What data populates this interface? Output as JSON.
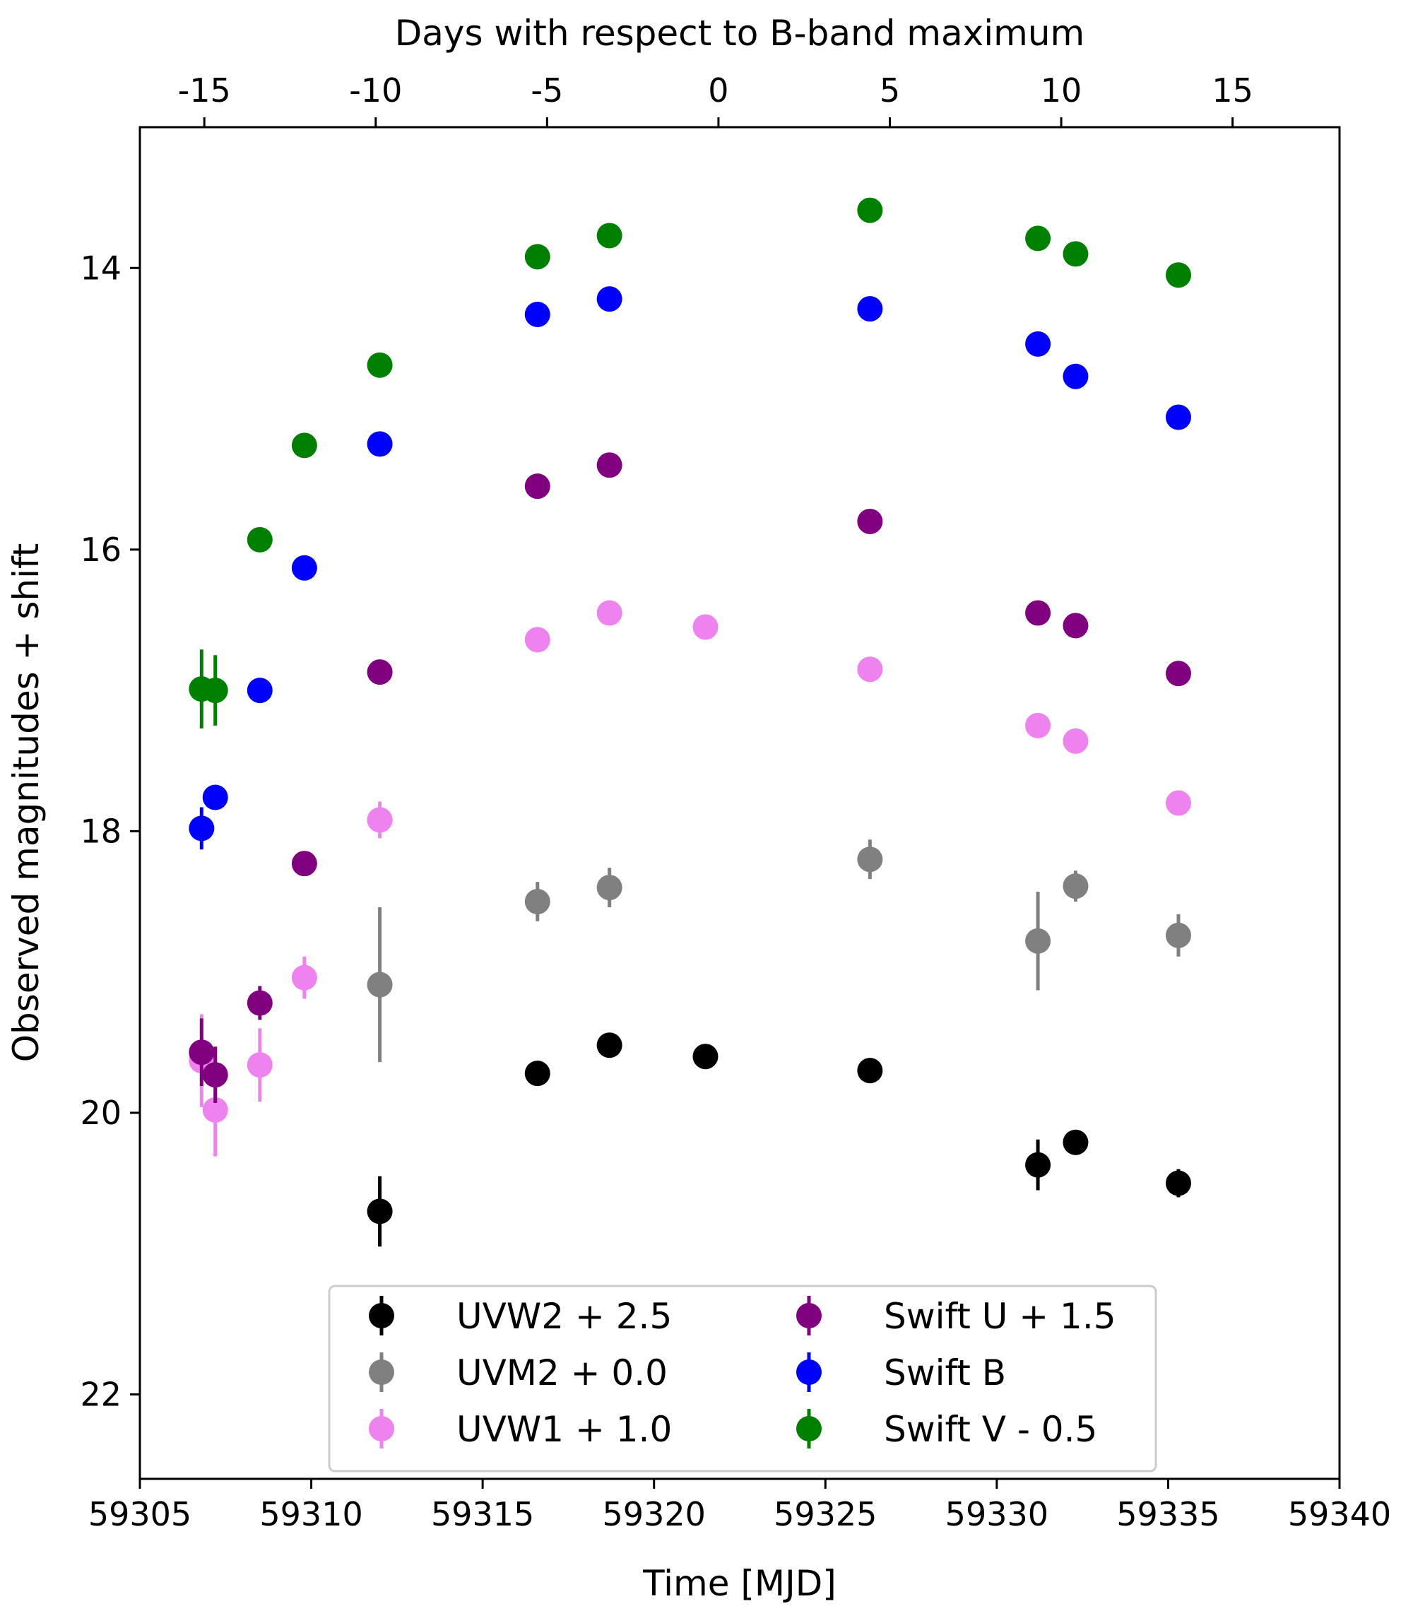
{
  "chart_data": {
    "type": "scatter",
    "xlabel": "Time [MJD]",
    "x2label": "Days with respect to B-band maximum",
    "ylabel": "Observed magnitudes + shift",
    "xlim": [
      59305,
      59340
    ],
    "ylim": [
      22.6,
      13.0
    ],
    "x_ticks": [
      59305,
      59310,
      59315,
      59320,
      59325,
      59330,
      59335,
      59340
    ],
    "y_ticks": [
      14,
      16,
      18,
      20,
      22
    ],
    "x2_ticks": [
      -15,
      -10,
      -5,
      0,
      5,
      10,
      15
    ],
    "b_max_mjd": 59321.88,
    "legend_position": "lower-center",
    "series": [
      {
        "name": "UVW2 + 2.5",
        "color": "#000000",
        "points": [
          {
            "x": 59312.0,
            "y": 20.7,
            "err": 0.25
          },
          {
            "x": 59316.6,
            "y": 19.72,
            "err": 0.06
          },
          {
            "x": 59318.7,
            "y": 19.52,
            "err": 0.06
          },
          {
            "x": 59321.5,
            "y": 19.6,
            "err": 0.06
          },
          {
            "x": 59326.3,
            "y": 19.7,
            "err": 0.06
          },
          {
            "x": 59331.2,
            "y": 20.37,
            "err": 0.18
          },
          {
            "x": 59332.3,
            "y": 20.21,
            "err": 0.08
          },
          {
            "x": 59335.3,
            "y": 20.5,
            "err": 0.1
          }
        ]
      },
      {
        "name": "UVM2 + 0.0",
        "color": "#808080",
        "points": [
          {
            "x": 59312.0,
            "y": 19.09,
            "err": 0.55
          },
          {
            "x": 59316.6,
            "y": 18.5,
            "err": 0.14
          },
          {
            "x": 59318.7,
            "y": 18.4,
            "err": 0.14
          },
          {
            "x": 59326.3,
            "y": 18.2,
            "err": 0.14
          },
          {
            "x": 59331.2,
            "y": 18.78,
            "err": 0.35
          },
          {
            "x": 59332.3,
            "y": 18.39,
            "err": 0.11
          },
          {
            "x": 59335.3,
            "y": 18.74,
            "err": 0.15
          }
        ]
      },
      {
        "name": "UVW1 + 1.0",
        "color": "#ee82ee",
        "points": [
          {
            "x": 59306.8,
            "y": 19.63,
            "err": 0.33
          },
          {
            "x": 59307.2,
            "y": 19.98,
            "err": 0.33
          },
          {
            "x": 59308.5,
            "y": 19.66,
            "err": 0.26
          },
          {
            "x": 59309.8,
            "y": 19.04,
            "err": 0.15
          },
          {
            "x": 59312.0,
            "y": 17.92,
            "err": 0.13
          },
          {
            "x": 59316.6,
            "y": 16.64,
            "err": 0.05
          },
          {
            "x": 59318.7,
            "y": 16.45,
            "err": 0.05
          },
          {
            "x": 59321.5,
            "y": 16.55,
            "err": 0.05
          },
          {
            "x": 59326.3,
            "y": 16.85,
            "err": 0.05
          },
          {
            "x": 59331.2,
            "y": 17.25,
            "err": 0.05
          },
          {
            "x": 59332.3,
            "y": 17.36,
            "err": 0.05
          },
          {
            "x": 59335.3,
            "y": 17.8,
            "err": 0.05
          }
        ]
      },
      {
        "name": "Swift U + 1.5",
        "color": "#800080",
        "points": [
          {
            "x": 59306.8,
            "y": 19.57,
            "err": 0.24
          },
          {
            "x": 59307.2,
            "y": 19.73,
            "err": 0.2
          },
          {
            "x": 59308.5,
            "y": 19.22,
            "err": 0.12
          },
          {
            "x": 59309.8,
            "y": 18.23,
            "err": 0.05
          },
          {
            "x": 59312.0,
            "y": 16.87,
            "err": 0.05
          },
          {
            "x": 59316.6,
            "y": 15.55,
            "err": 0.04
          },
          {
            "x": 59318.7,
            "y": 15.4,
            "err": 0.04
          },
          {
            "x": 59326.3,
            "y": 15.8,
            "err": 0.04
          },
          {
            "x": 59331.2,
            "y": 16.45,
            "err": 0.04
          },
          {
            "x": 59332.3,
            "y": 16.54,
            "err": 0.04
          },
          {
            "x": 59335.3,
            "y": 16.88,
            "err": 0.04
          }
        ]
      },
      {
        "name": "Swift B",
        "color": "#0000ff",
        "points": [
          {
            "x": 59306.8,
            "y": 17.98,
            "err": 0.15
          },
          {
            "x": 59307.2,
            "y": 17.76,
            "err": 0.08
          },
          {
            "x": 59308.5,
            "y": 17.0,
            "err": 0.05
          },
          {
            "x": 59309.8,
            "y": 16.13,
            "err": 0.04
          },
          {
            "x": 59312.0,
            "y": 15.25,
            "err": 0.03
          },
          {
            "x": 59316.6,
            "y": 14.33,
            "err": 0.03
          },
          {
            "x": 59318.7,
            "y": 14.22,
            "err": 0.03
          },
          {
            "x": 59326.3,
            "y": 14.29,
            "err": 0.03
          },
          {
            "x": 59331.2,
            "y": 14.54,
            "err": 0.03
          },
          {
            "x": 59332.3,
            "y": 14.77,
            "err": 0.03
          },
          {
            "x": 59335.3,
            "y": 15.06,
            "err": 0.03
          }
        ]
      },
      {
        "name": "Swift V - 0.5",
        "color": "#008000",
        "points": [
          {
            "x": 59306.8,
            "y": 16.99,
            "err": 0.28
          },
          {
            "x": 59307.2,
            "y": 17.0,
            "err": 0.25
          },
          {
            "x": 59308.5,
            "y": 15.93,
            "err": 0.04
          },
          {
            "x": 59309.8,
            "y": 15.26,
            "err": 0.04
          },
          {
            "x": 59312.0,
            "y": 14.69,
            "err": 0.04
          },
          {
            "x": 59316.6,
            "y": 13.92,
            "err": 0.03
          },
          {
            "x": 59318.7,
            "y": 13.77,
            "err": 0.03
          },
          {
            "x": 59326.3,
            "y": 13.59,
            "err": 0.03
          },
          {
            "x": 59331.2,
            "y": 13.79,
            "err": 0.03
          },
          {
            "x": 59332.3,
            "y": 13.9,
            "err": 0.03
          },
          {
            "x": 59335.3,
            "y": 14.05,
            "err": 0.03
          }
        ]
      }
    ]
  }
}
